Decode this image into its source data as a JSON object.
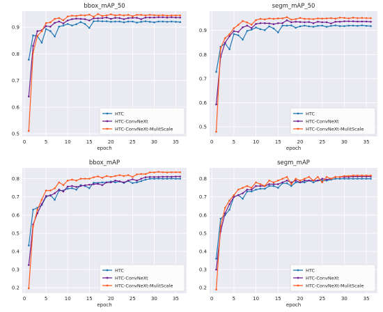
{
  "chart_data": [
    {
      "type": "line",
      "title": "bbox_mAP_50",
      "xlabel": "epoch",
      "ylabel": "",
      "xlim": [
        -0.5,
        37.5
      ],
      "ylim": [
        0.49,
        0.96
      ],
      "xticks": [
        0,
        5,
        10,
        15,
        20,
        25,
        30,
        35
      ],
      "yticks": [
        0.5,
        0.6,
        0.7,
        0.8,
        0.9
      ],
      "grid": true,
      "legend": "bottom-right",
      "series": [
        {
          "name": "HTC",
          "color": "#1f77b4",
          "values": [
            0.778,
            0.869,
            0.866,
            0.842,
            0.893,
            0.885,
            0.865,
            0.902,
            0.906,
            0.912,
            0.906,
            0.911,
            0.919,
            0.912,
            0.897,
            0.922,
            0.923,
            0.922,
            0.922,
            0.92,
            0.921,
            0.921,
            0.918,
            0.921,
            0.921,
            0.917,
            0.92,
            0.922,
            0.92,
            0.918,
            0.921,
            0.921,
            0.92,
            0.921,
            0.92,
            0.919
          ]
        },
        {
          "name": "HTC-ConvNeXt",
          "color": "#6f1e8f",
          "values": [
            0.64,
            0.83,
            0.885,
            0.888,
            0.904,
            0.902,
            0.916,
            0.921,
            0.914,
            0.925,
            0.93,
            0.932,
            0.931,
            0.93,
            0.925,
            0.933,
            0.933,
            0.934,
            0.936,
            0.931,
            0.935,
            0.934,
            0.93,
            0.934,
            0.935,
            0.935,
            0.93,
            0.936,
            0.936,
            0.936,
            0.937,
            0.937,
            0.936,
            0.937,
            0.936,
            0.936
          ]
        },
        {
          "name": "HTC-ConvNeXt-MulitScale",
          "color": "#ff5a1f",
          "values": [
            0.511,
            0.805,
            0.867,
            0.885,
            0.915,
            0.918,
            0.931,
            0.934,
            0.926,
            0.94,
            0.943,
            0.942,
            0.945,
            0.944,
            0.947,
            0.939,
            0.949,
            0.942,
            0.944,
            0.948,
            0.944,
            0.946,
            0.944,
            0.946,
            0.941,
            0.946,
            0.946,
            0.944,
            0.946,
            0.945,
            0.944,
            0.945,
            0.943,
            0.944,
            0.944,
            0.944
          ]
        }
      ]
    },
    {
      "type": "line",
      "title": "segm_mAP_50",
      "xlabel": "epoch",
      "ylabel": "",
      "xlim": [
        -0.5,
        37.5
      ],
      "ylim": [
        0.46,
        0.98
      ],
      "xticks": [
        0,
        5,
        10,
        15,
        20,
        25,
        30,
        35
      ],
      "yticks": [
        0.5,
        0.6,
        0.7,
        0.8,
        0.9
      ],
      "grid": true,
      "legend": "bottom-right",
      "series": [
        {
          "name": "HTC",
          "color": "#1f77b4",
          "values": [
            0.728,
            0.832,
            0.846,
            0.822,
            0.885,
            0.88,
            0.862,
            0.898,
            0.903,
            0.912,
            0.905,
            0.901,
            0.917,
            0.908,
            0.892,
            0.92,
            0.92,
            0.921,
            0.911,
            0.917,
            0.92,
            0.917,
            0.915,
            0.919,
            0.92,
            0.915,
            0.919,
            0.921,
            0.918,
            0.918,
            0.92,
            0.92,
            0.919,
            0.921,
            0.919,
            0.918
          ]
        },
        {
          "name": "HTC-ConvNeXt",
          "color": "#6f1e8f",
          "values": [
            0.593,
            0.79,
            0.849,
            0.876,
            0.897,
            0.894,
            0.913,
            0.92,
            0.91,
            0.927,
            0.93,
            0.93,
            0.929,
            0.926,
            0.93,
            0.93,
            0.942,
            0.934,
            0.936,
            0.935,
            0.934,
            0.935,
            0.93,
            0.936,
            0.934,
            0.934,
            0.929,
            0.936,
            0.936,
            0.938,
            0.938,
            0.938,
            0.937,
            0.937,
            0.937,
            0.936
          ]
        },
        {
          "name": "HTC-ConvNeXt-MulitScale",
          "color": "#ff5a1f",
          "values": [
            0.48,
            0.826,
            0.868,
            0.884,
            0.909,
            0.923,
            0.939,
            0.933,
            0.924,
            0.943,
            0.948,
            0.946,
            0.95,
            0.948,
            0.95,
            0.95,
            0.955,
            0.945,
            0.947,
            0.952,
            0.948,
            0.948,
            0.947,
            0.95,
            0.949,
            0.95,
            0.951,
            0.949,
            0.953,
            0.952,
            0.95,
            0.953,
            0.951,
            0.952,
            0.951,
            0.951
          ]
        }
      ]
    },
    {
      "type": "line",
      "title": "bbox_mAP",
      "xlabel": "epoch",
      "ylabel": "",
      "xlim": [
        -0.5,
        37.5
      ],
      "ylim": [
        0.17,
        0.86
      ],
      "xticks": [
        0,
        5,
        10,
        15,
        20,
        25,
        30,
        35
      ],
      "yticks": [
        0.2,
        0.3,
        0.4,
        0.5,
        0.6,
        0.7,
        0.8
      ],
      "grid": true,
      "legend": "bottom-right",
      "series": [
        {
          "name": "HTC",
          "color": "#1f77b4",
          "values": [
            0.433,
            0.63,
            0.64,
            0.655,
            0.7,
            0.71,
            0.684,
            0.735,
            0.735,
            0.745,
            0.748,
            0.74,
            0.765,
            0.76,
            0.748,
            0.778,
            0.777,
            0.78,
            0.78,
            0.785,
            0.78,
            0.785,
            0.777,
            0.788,
            0.776,
            0.78,
            0.787,
            0.795,
            0.8,
            0.8,
            0.801,
            0.8,
            0.8,
            0.801,
            0.8,
            0.8
          ]
        },
        {
          "name": "HTC-ConvNeXt",
          "color": "#6f1e8f",
          "values": [
            0.325,
            0.548,
            0.61,
            0.66,
            0.705,
            0.707,
            0.72,
            0.74,
            0.73,
            0.757,
            0.76,
            0.755,
            0.76,
            0.764,
            0.767,
            0.77,
            0.772,
            0.765,
            0.78,
            0.78,
            0.79,
            0.786,
            0.78,
            0.79,
            0.797,
            0.79,
            0.8,
            0.808,
            0.81,
            0.81,
            0.81,
            0.811,
            0.811,
            0.811,
            0.812,
            0.812
          ]
        },
        {
          "name": "HTC-ConvNeXt-MulitScale",
          "color": "#ff5a1f",
          "values": [
            0.197,
            0.537,
            0.63,
            0.685,
            0.735,
            0.735,
            0.747,
            0.78,
            0.765,
            0.79,
            0.795,
            0.79,
            0.8,
            0.8,
            0.8,
            0.808,
            0.813,
            0.805,
            0.815,
            0.81,
            0.815,
            0.82,
            0.815,
            0.82,
            0.81,
            0.824,
            0.826,
            0.826,
            0.835,
            0.835,
            0.838,
            0.836,
            0.835,
            0.836,
            0.836,
            0.836
          ]
        }
      ]
    },
    {
      "type": "line",
      "title": "segm_mAP",
      "xlabel": "epoch",
      "ylabel": "",
      "xlim": [
        -0.5,
        37.5
      ],
      "ylim": [
        0.17,
        0.86
      ],
      "xticks": [
        0,
        5,
        10,
        15,
        20,
        25,
        30,
        35
      ],
      "yticks": [
        0.2,
        0.3,
        0.4,
        0.5,
        0.6,
        0.7,
        0.8
      ],
      "grid": true,
      "legend": "bottom-right",
      "series": [
        {
          "name": "HTC",
          "color": "#1f77b4",
          "values": [
            0.36,
            0.58,
            0.6,
            0.63,
            0.7,
            0.71,
            0.69,
            0.73,
            0.73,
            0.74,
            0.745,
            0.745,
            0.76,
            0.76,
            0.75,
            0.775,
            0.775,
            0.76,
            0.78,
            0.78,
            0.78,
            0.79,
            0.78,
            0.79,
            0.79,
            0.79,
            0.795,
            0.8,
            0.8,
            0.8,
            0.8,
            0.8,
            0.8,
            0.8,
            0.8,
            0.8
          ]
        },
        {
          "name": "HTC-ConvNeXt",
          "color": "#6f1e8f",
          "values": [
            0.3,
            0.51,
            0.61,
            0.66,
            0.7,
            0.71,
            0.72,
            0.74,
            0.74,
            0.76,
            0.76,
            0.76,
            0.77,
            0.77,
            0.77,
            0.78,
            0.79,
            0.78,
            0.79,
            0.78,
            0.79,
            0.79,
            0.79,
            0.79,
            0.8,
            0.795,
            0.8,
            0.81,
            0.81,
            0.81,
            0.81,
            0.812,
            0.812,
            0.812,
            0.812,
            0.812
          ]
        },
        {
          "name": "HTC-ConvNeXt-MulitScale",
          "color": "#ff5a1f",
          "values": [
            0.19,
            0.54,
            0.64,
            0.68,
            0.71,
            0.74,
            0.75,
            0.76,
            0.75,
            0.78,
            0.77,
            0.76,
            0.79,
            0.78,
            0.79,
            0.8,
            0.81,
            0.77,
            0.8,
            0.79,
            0.8,
            0.81,
            0.79,
            0.81,
            0.78,
            0.81,
            0.8,
            0.81,
            0.81,
            0.815,
            0.815,
            0.818,
            0.818,
            0.818,
            0.818,
            0.818
          ]
        }
      ]
    }
  ]
}
